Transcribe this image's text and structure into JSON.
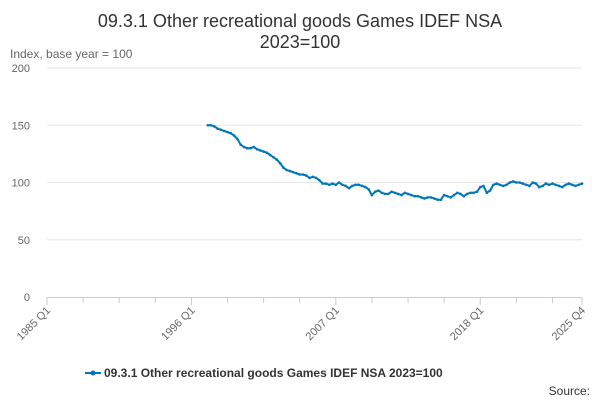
{
  "chart_data": {
    "type": "line",
    "title_lines": [
      "09.3.1 Other recreational goods Games IDEF NSA",
      "2023=100"
    ],
    "ylabel": "Index, base year = 100",
    "xlabel": "",
    "xlim": [
      1985.0,
      2025.75
    ],
    "ylim": [
      0,
      200
    ],
    "yticks": [
      0,
      50,
      100,
      150,
      200
    ],
    "xticks": [
      {
        "label": "1985 Q1",
        "value": 1985.0
      },
      {
        "label": "1996 Q1",
        "value": 1996.0
      },
      {
        "label": "2007 Q1",
        "value": 2007.0
      },
      {
        "label": "2018 Q1",
        "value": 2018.0
      },
      {
        "label": "2025 Q4",
        "value": 2025.75
      }
    ],
    "minor_xticks": [
      1987.75,
      1990.5,
      1993.25,
      1998.75,
      2001.5,
      2004.25,
      2009.75,
      2012.5,
      2015.25,
      2020.75,
      2023.5
    ],
    "grid": true,
    "legend_position": "bottom",
    "series": [
      {
        "name": "09.3.1 Other recreational goods Games IDEF NSA 2023=100",
        "color": "#0077bb",
        "x": [
          1997.25,
          1997.5,
          1997.75,
          1998.0,
          1998.25,
          1998.5,
          1998.75,
          1999.0,
          1999.25,
          1999.5,
          1999.75,
          2000.0,
          2000.25,
          2000.5,
          2000.75,
          2001.0,
          2001.25,
          2001.5,
          2001.75,
          2002.0,
          2002.25,
          2002.5,
          2002.75,
          2003.0,
          2003.25,
          2003.5,
          2003.75,
          2004.0,
          2004.25,
          2004.5,
          2004.75,
          2005.0,
          2005.25,
          2005.5,
          2005.75,
          2006.0,
          2006.25,
          2006.5,
          2006.75,
          2007.0,
          2007.25,
          2007.5,
          2007.75,
          2008.0,
          2008.25,
          2008.5,
          2008.75,
          2009.0,
          2009.25,
          2009.5,
          2009.75,
          2010.0,
          2010.25,
          2010.5,
          2010.75,
          2011.0,
          2011.25,
          2011.5,
          2011.75,
          2012.0,
          2012.25,
          2012.5,
          2012.75,
          2013.0,
          2013.25,
          2013.5,
          2013.75,
          2014.0,
          2014.25,
          2014.5,
          2014.75,
          2015.0,
          2015.25,
          2015.5,
          2015.75,
          2016.0,
          2016.25,
          2016.5,
          2016.75,
          2017.0,
          2017.25,
          2017.5,
          2017.75,
          2018.0,
          2018.25,
          2018.5,
          2018.75,
          2019.0,
          2019.25,
          2019.5,
          2019.75,
          2020.0,
          2020.25,
          2020.5,
          2020.75,
          2021.0,
          2021.25,
          2021.5,
          2021.75,
          2022.0,
          2022.25,
          2022.5,
          2022.75,
          2023.0,
          2023.25,
          2023.5,
          2023.75,
          2024.0,
          2024.25,
          2024.5,
          2024.75,
          2025.0,
          2025.25,
          2025.5,
          2025.75
        ],
        "values": [
          150,
          150,
          149,
          147,
          146,
          145,
          144,
          143,
          141,
          138,
          133,
          131,
          130,
          130,
          131,
          129,
          128,
          127,
          126,
          124,
          122,
          120,
          117,
          113,
          111,
          110,
          109,
          108,
          107,
          107,
          106,
          104,
          105,
          104,
          102,
          99,
          99,
          98,
          99,
          98,
          100,
          98,
          97,
          95,
          97,
          98,
          98,
          97,
          96,
          94,
          89,
          92,
          93,
          91,
          90,
          90,
          92,
          91,
          90,
          89,
          91,
          90,
          89,
          88,
          88,
          87,
          86,
          87,
          87,
          86,
          85,
          85,
          89,
          88,
          87,
          89,
          91,
          90,
          88,
          90,
          91,
          91,
          92,
          96,
          97,
          91,
          93,
          98,
          99,
          98,
          97,
          98,
          100,
          101,
          100,
          100,
          99,
          98,
          97,
          100,
          99,
          96,
          97,
          99,
          98,
          99,
          98,
          97,
          96,
          98,
          99,
          98,
          97,
          98,
          99
        ]
      }
    ],
    "source": "Source:"
  }
}
